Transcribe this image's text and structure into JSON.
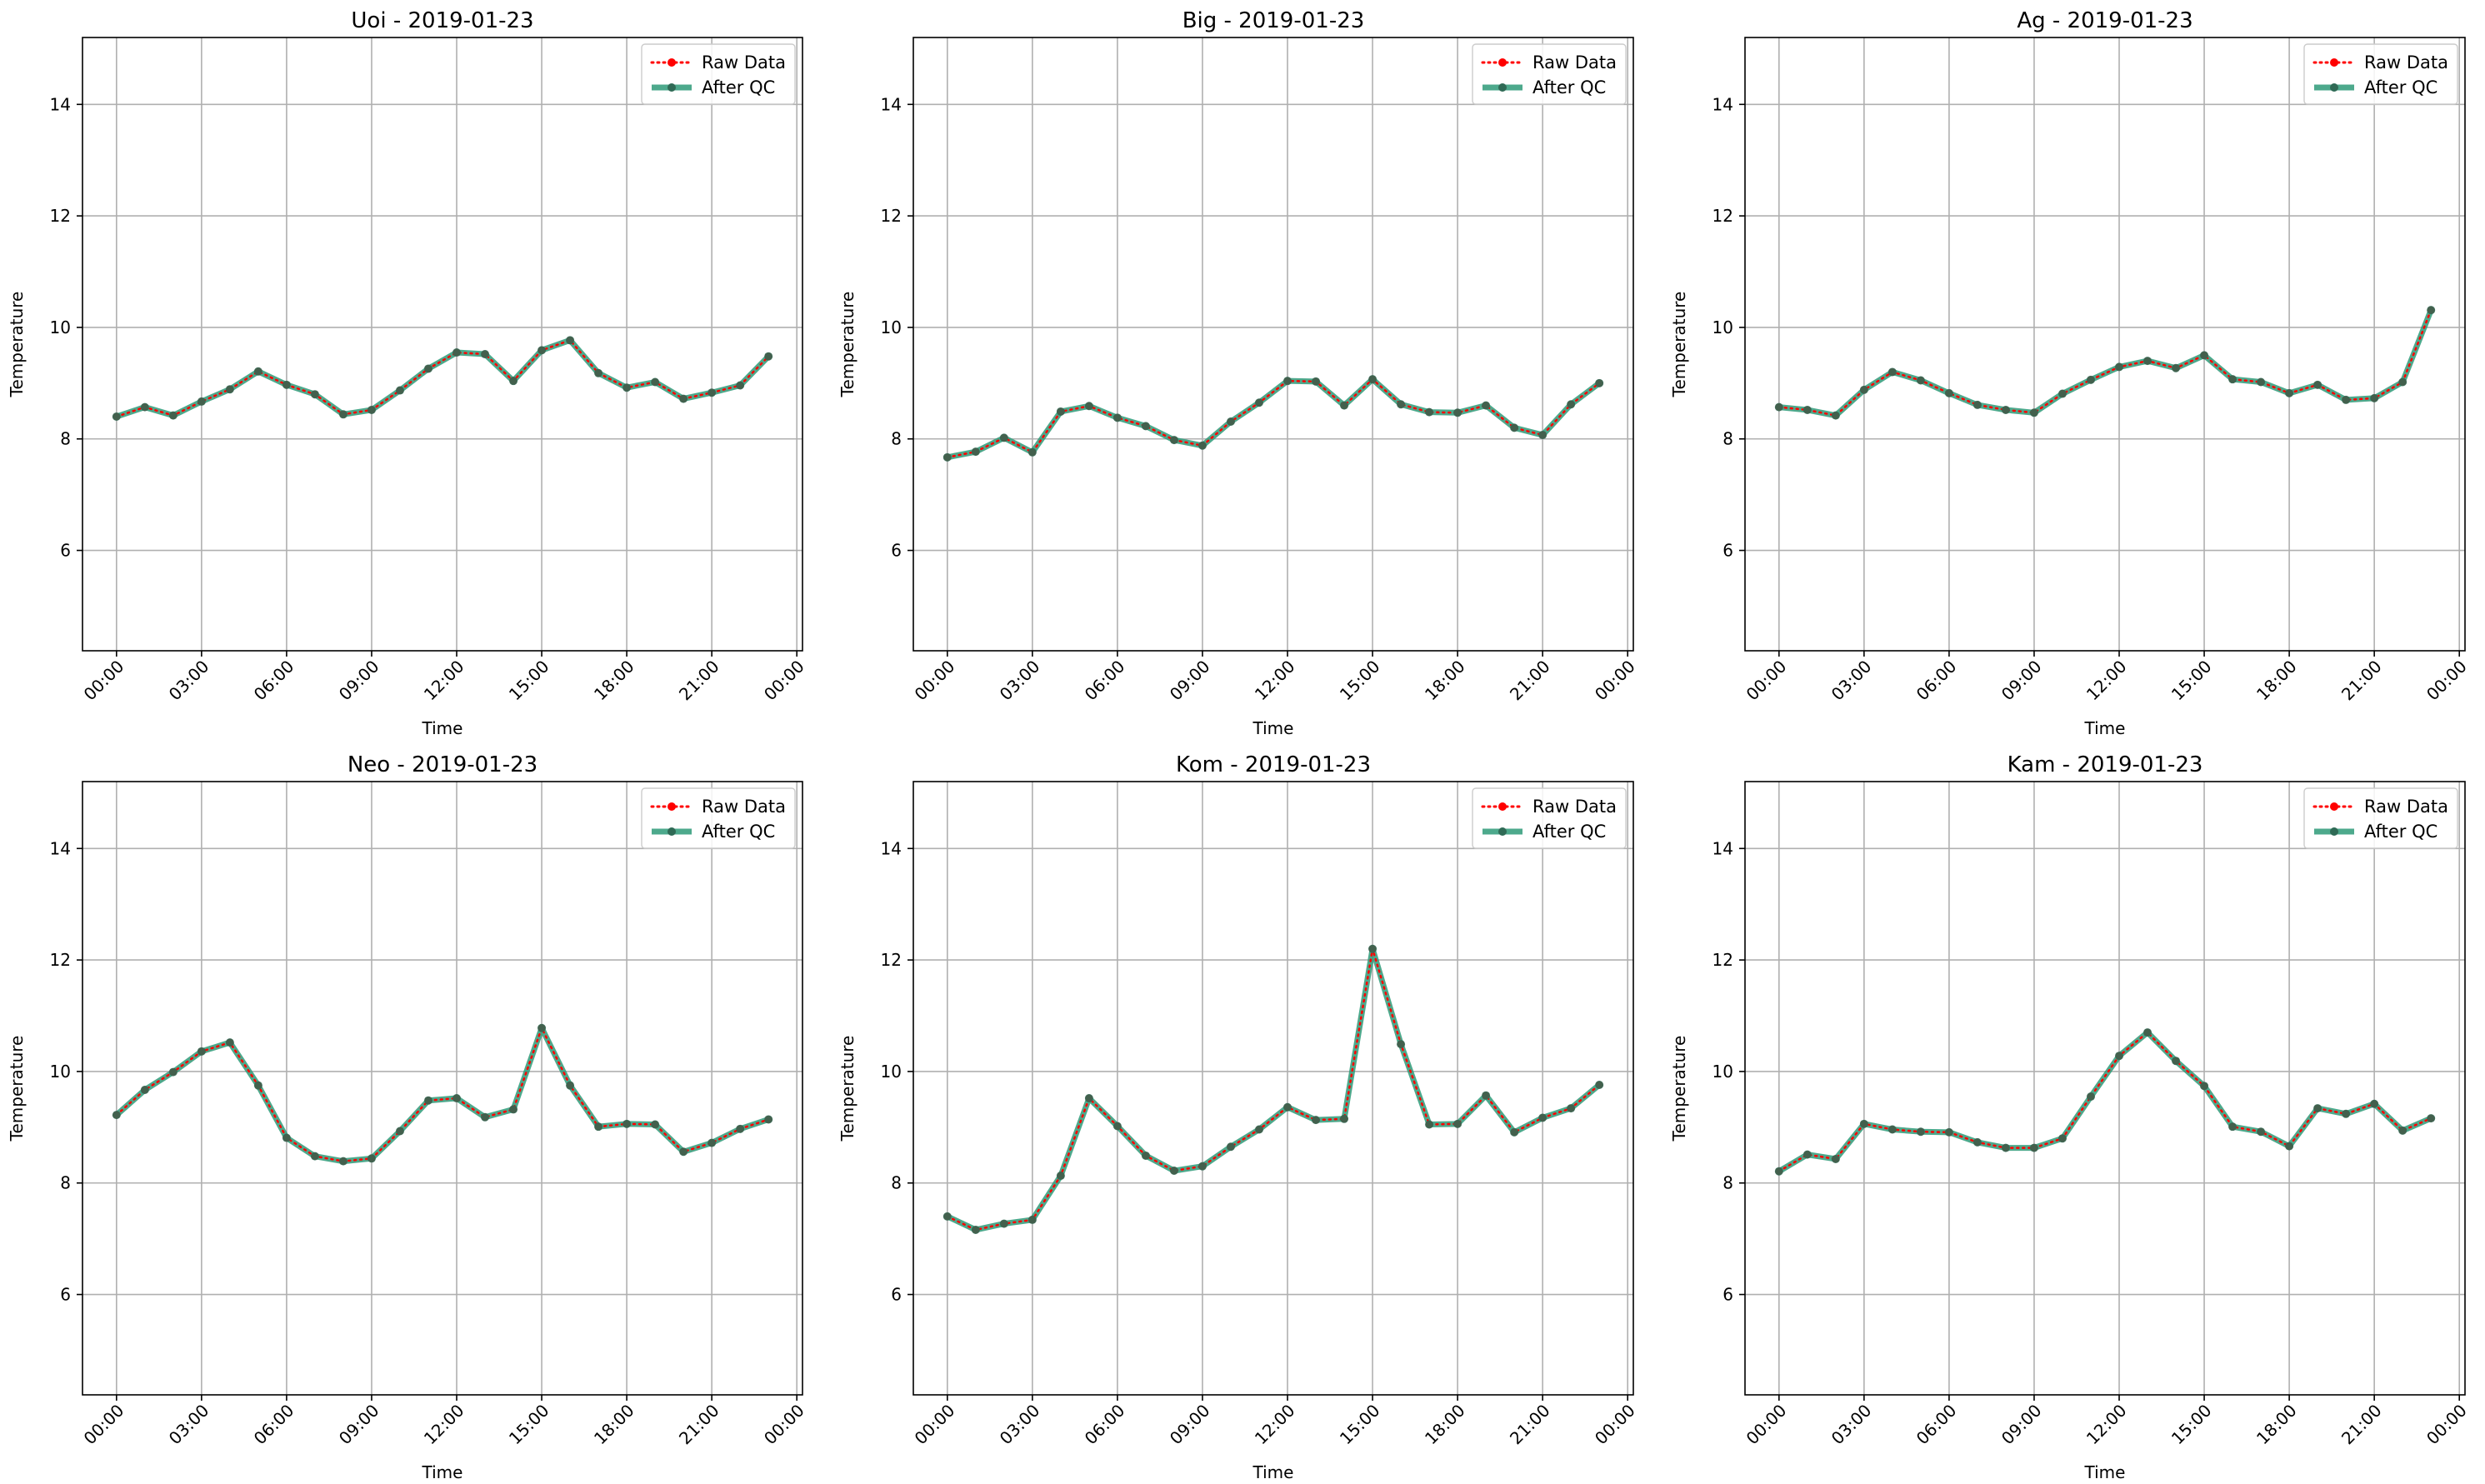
{
  "colors": {
    "raw": "#ff0000",
    "qc": "#2e9a78",
    "marker": "#2f6a55",
    "grid": "#b0b0b0"
  },
  "legend": {
    "raw": "Raw Data",
    "qc": "After QC",
    "placement": "upper right"
  },
  "chart_data": [
    {
      "type": "line",
      "title": "Uoi - 2019-01-23",
      "xlabel": "Time",
      "ylabel": "Temperature",
      "ylim": [
        4.2,
        15.2
      ],
      "yticks": [
        6,
        8,
        10,
        12,
        14
      ],
      "xlim": [
        -1.2,
        24.2
      ],
      "xticks": [
        0,
        3,
        6,
        9,
        12,
        15,
        18,
        21,
        24
      ],
      "xticklabels": [
        "00:00",
        "03:00",
        "06:00",
        "09:00",
        "12:00",
        "15:00",
        "18:00",
        "21:00",
        "00:00"
      ],
      "grid": true,
      "x": [
        0,
        1,
        2,
        3,
        4,
        5,
        6,
        7,
        8,
        9,
        10,
        11,
        12,
        13,
        14,
        15,
        16,
        17,
        18,
        19,
        20,
        21,
        22,
        23
      ],
      "series": [
        {
          "name": "Raw Data",
          "values": [
            8.4,
            8.57,
            8.42,
            8.67,
            8.89,
            9.21,
            8.97,
            8.8,
            8.44,
            8.52,
            8.87,
            9.26,
            9.55,
            9.52,
            9.04,
            9.59,
            9.77,
            9.18,
            8.92,
            9.02,
            8.72,
            8.83,
            8.96,
            9.48
          ]
        },
        {
          "name": "After QC",
          "values": [
            8.4,
            8.57,
            8.42,
            8.67,
            8.89,
            9.21,
            8.97,
            8.8,
            8.44,
            8.52,
            8.87,
            9.26,
            9.55,
            9.52,
            9.04,
            9.59,
            9.77,
            9.18,
            8.92,
            9.02,
            8.72,
            8.83,
            8.96,
            9.48
          ]
        }
      ]
    },
    {
      "type": "line",
      "title": "Big - 2019-01-23",
      "xlabel": "Time",
      "ylabel": "Temperature",
      "ylim": [
        4.2,
        15.2
      ],
      "yticks": [
        6,
        8,
        10,
        12,
        14
      ],
      "xlim": [
        -1.2,
        24.2
      ],
      "xticks": [
        0,
        3,
        6,
        9,
        12,
        15,
        18,
        21,
        24
      ],
      "xticklabels": [
        "00:00",
        "03:00",
        "06:00",
        "09:00",
        "12:00",
        "15:00",
        "18:00",
        "21:00",
        "00:00"
      ],
      "grid": true,
      "x": [
        0,
        1,
        2,
        3,
        4,
        5,
        6,
        7,
        8,
        9,
        10,
        11,
        12,
        13,
        14,
        15,
        16,
        17,
        18,
        19,
        20,
        21,
        22,
        23
      ],
      "series": [
        {
          "name": "Raw Data",
          "values": [
            7.67,
            7.77,
            8.02,
            7.76,
            8.49,
            8.59,
            8.38,
            8.23,
            7.98,
            7.88,
            8.31,
            8.65,
            9.04,
            9.03,
            8.6,
            9.07,
            8.62,
            8.48,
            8.47,
            8.6,
            8.2,
            8.07,
            8.62,
            9.0
          ]
        },
        {
          "name": "After QC",
          "values": [
            7.67,
            7.77,
            8.02,
            7.76,
            8.49,
            8.59,
            8.38,
            8.23,
            7.98,
            7.88,
            8.31,
            8.65,
            9.04,
            9.03,
            8.6,
            9.07,
            8.62,
            8.48,
            8.47,
            8.6,
            8.2,
            8.07,
            8.62,
            9.0
          ]
        }
      ]
    },
    {
      "type": "line",
      "title": "Ag - 2019-01-23",
      "xlabel": "Time",
      "ylabel": "Temperature",
      "ylim": [
        4.2,
        15.2
      ],
      "yticks": [
        6,
        8,
        10,
        12,
        14
      ],
      "xlim": [
        -1.2,
        24.2
      ],
      "xticks": [
        0,
        3,
        6,
        9,
        12,
        15,
        18,
        21,
        24
      ],
      "xticklabels": [
        "00:00",
        "03:00",
        "06:00",
        "09:00",
        "12:00",
        "15:00",
        "18:00",
        "21:00",
        "00:00"
      ],
      "grid": true,
      "x": [
        0,
        1,
        2,
        3,
        4,
        5,
        6,
        7,
        8,
        9,
        10,
        11,
        12,
        13,
        14,
        15,
        16,
        17,
        18,
        19,
        20,
        21,
        22,
        23
      ],
      "series": [
        {
          "name": "Raw Data",
          "values": [
            8.57,
            8.52,
            8.42,
            8.88,
            9.2,
            9.05,
            8.82,
            8.61,
            8.52,
            8.47,
            8.81,
            9.06,
            9.29,
            9.4,
            9.27,
            9.5,
            9.07,
            9.02,
            8.82,
            8.97,
            8.7,
            8.73,
            9.02,
            10.31
          ]
        },
        {
          "name": "After QC",
          "values": [
            8.57,
            8.52,
            8.42,
            8.88,
            9.2,
            9.05,
            8.82,
            8.61,
            8.52,
            8.47,
            8.81,
            9.06,
            9.29,
            9.4,
            9.27,
            9.5,
            9.07,
            9.02,
            8.82,
            8.97,
            8.7,
            8.73,
            9.02,
            10.31
          ]
        }
      ]
    },
    {
      "type": "line",
      "title": "Neo - 2019-01-23",
      "xlabel": "Time",
      "ylabel": "Temperature",
      "ylim": [
        4.2,
        15.2
      ],
      "yticks": [
        6,
        8,
        10,
        12,
        14
      ],
      "xlim": [
        -1.2,
        24.2
      ],
      "xticks": [
        0,
        3,
        6,
        9,
        12,
        15,
        18,
        21,
        24
      ],
      "xticklabels": [
        "00:00",
        "03:00",
        "06:00",
        "09:00",
        "12:00",
        "15:00",
        "18:00",
        "21:00",
        "00:00"
      ],
      "grid": true,
      "x": [
        0,
        1,
        2,
        3,
        4,
        5,
        6,
        7,
        8,
        9,
        10,
        11,
        12,
        13,
        14,
        15,
        16,
        17,
        18,
        19,
        20,
        21,
        22,
        23
      ],
      "series": [
        {
          "name": "Raw Data",
          "values": [
            9.22,
            9.67,
            9.99,
            10.36,
            10.52,
            9.75,
            8.81,
            8.48,
            8.39,
            8.44,
            8.93,
            9.48,
            9.52,
            9.18,
            9.32,
            10.78,
            9.75,
            9.01,
            9.06,
            9.05,
            8.56,
            8.72,
            8.97,
            9.14
          ]
        },
        {
          "name": "After QC",
          "values": [
            9.22,
            9.67,
            9.99,
            10.36,
            10.52,
            9.75,
            8.81,
            8.48,
            8.39,
            8.44,
            8.93,
            9.48,
            9.52,
            9.18,
            9.32,
            10.78,
            9.75,
            9.01,
            9.06,
            9.05,
            8.56,
            8.72,
            8.97,
            9.14
          ]
        }
      ]
    },
    {
      "type": "line",
      "title": "Kom - 2019-01-23",
      "xlabel": "Time",
      "ylabel": "Temperature",
      "ylim": [
        4.2,
        15.2
      ],
      "yticks": [
        6,
        8,
        10,
        12,
        14
      ],
      "xlim": [
        -1.2,
        24.2
      ],
      "xticks": [
        0,
        3,
        6,
        9,
        12,
        15,
        18,
        21,
        24
      ],
      "xticklabels": [
        "00:00",
        "03:00",
        "06:00",
        "09:00",
        "12:00",
        "15:00",
        "18:00",
        "21:00",
        "00:00"
      ],
      "grid": true,
      "x": [
        0,
        1,
        2,
        3,
        4,
        5,
        6,
        7,
        8,
        9,
        10,
        11,
        12,
        13,
        14,
        15,
        16,
        17,
        18,
        19,
        20,
        21,
        22,
        23
      ],
      "series": [
        {
          "name": "Raw Data",
          "values": [
            7.4,
            7.16,
            7.27,
            7.34,
            8.13,
            9.52,
            9.02,
            8.49,
            8.22,
            8.3,
            8.65,
            8.96,
            9.36,
            9.13,
            9.15,
            12.2,
            10.49,
            9.05,
            9.06,
            9.57,
            8.91,
            9.17,
            9.34,
            9.76
          ]
        },
        {
          "name": "After QC",
          "values": [
            7.4,
            7.16,
            7.27,
            7.34,
            8.13,
            9.52,
            9.02,
            8.49,
            8.22,
            8.3,
            8.65,
            8.96,
            9.36,
            9.13,
            9.15,
            12.2,
            10.49,
            9.05,
            9.06,
            9.57,
            8.91,
            9.17,
            9.34,
            9.76
          ]
        }
      ]
    },
    {
      "type": "line",
      "title": "Kam - 2019-01-23",
      "xlabel": "Time",
      "ylabel": "Temperature",
      "ylim": [
        4.2,
        15.2
      ],
      "yticks": [
        6,
        8,
        10,
        12,
        14
      ],
      "xlim": [
        -1.2,
        24.2
      ],
      "xticks": [
        0,
        3,
        6,
        9,
        12,
        15,
        18,
        21,
        24
      ],
      "xticklabels": [
        "00:00",
        "03:00",
        "06:00",
        "09:00",
        "12:00",
        "15:00",
        "18:00",
        "21:00",
        "00:00"
      ],
      "grid": true,
      "x": [
        0,
        1,
        2,
        3,
        4,
        5,
        6,
        7,
        8,
        9,
        10,
        11,
        12,
        13,
        14,
        15,
        16,
        17,
        18,
        19,
        20,
        21,
        22,
        23
      ],
      "series": [
        {
          "name": "Raw Data",
          "values": [
            8.21,
            8.51,
            8.43,
            9.06,
            8.96,
            8.92,
            8.91,
            8.73,
            8.63,
            8.63,
            8.8,
            9.55,
            10.28,
            10.7,
            10.19,
            9.74,
            9.01,
            8.92,
            8.66,
            9.34,
            9.24,
            9.42,
            8.94,
            9.16
          ]
        },
        {
          "name": "After QC",
          "values": [
            8.21,
            8.51,
            8.43,
            9.06,
            8.96,
            8.92,
            8.91,
            8.73,
            8.63,
            8.63,
            8.8,
            9.55,
            10.28,
            10.7,
            10.19,
            9.74,
            9.01,
            8.92,
            8.66,
            9.34,
            9.24,
            9.42,
            8.94,
            9.16
          ]
        }
      ]
    }
  ]
}
